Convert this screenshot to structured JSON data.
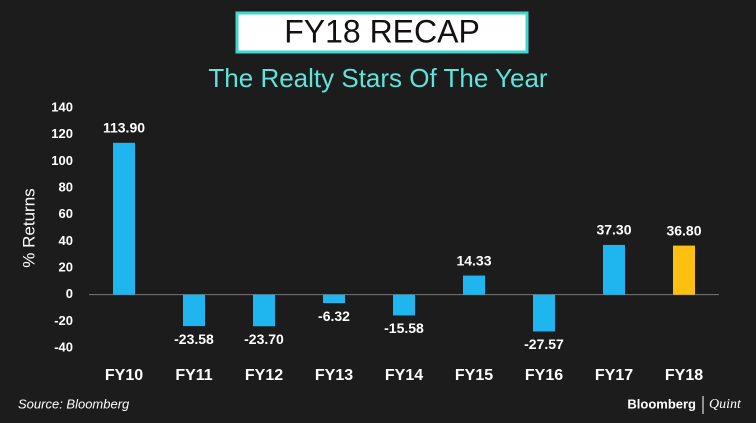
{
  "chart_data": {
    "type": "bar",
    "title": "FY18 RECAP",
    "subtitle": "The Realty Stars Of The Year",
    "y_label": "% Returns",
    "categories": [
      "FY10",
      "FY11",
      "FY12",
      "FY13",
      "FY14",
      "FY15",
      "FY16",
      "FY17",
      "FY18"
    ],
    "values": [
      113.9,
      -23.58,
      -23.7,
      -6.32,
      -15.58,
      14.33,
      -27.57,
      37.3,
      36.8
    ],
    "value_labels": [
      "113.90",
      "-23.58",
      "-23.70",
      "-6.32",
      "-15.58",
      "14.33",
      "-27.57",
      "37.30",
      "36.80"
    ],
    "colors": [
      "#1fb5ee",
      "#1fb5ee",
      "#1fb5ee",
      "#1fb5ee",
      "#1fb5ee",
      "#1fb5ee",
      "#1fb5ee",
      "#1fb5ee",
      "#fdc010"
    ],
    "ylim": [
      -40,
      140
    ],
    "yticks": [
      -40,
      -20,
      0,
      20,
      40,
      60,
      80,
      100,
      120,
      140
    ],
    "source": "Source: Bloomberg",
    "brand": [
      "Bloomberg",
      "Quint"
    ]
  }
}
